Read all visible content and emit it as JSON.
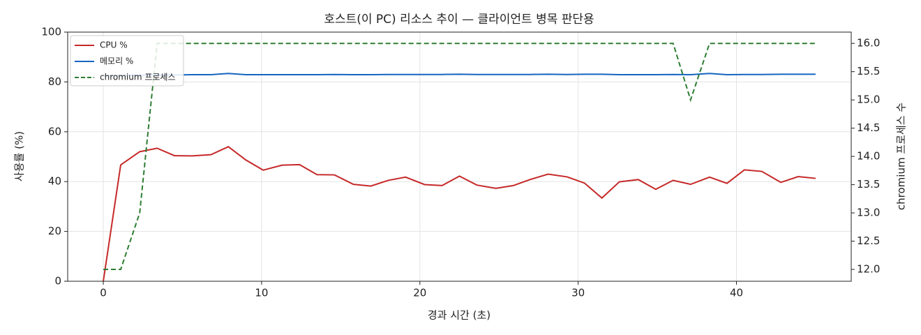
{
  "chart_data": {
    "type": "line",
    "title": "호스트(이 PC) 리소스 추이 — 클라이언트 병목 판단용",
    "x_label": "경과 시간 (초)",
    "y_label": "사용률 (%)",
    "y2_label": "chromium 프로세스 수",
    "x": [
      0,
      1.1,
      2.3,
      3.4,
      4.5,
      5.6,
      6.8,
      7.9,
      9.0,
      10.1,
      11.3,
      12.4,
      13.5,
      14.6,
      15.8,
      16.9,
      18.0,
      19.1,
      20.3,
      21.4,
      22.5,
      23.6,
      24.8,
      25.9,
      27.0,
      28.1,
      29.3,
      30.4,
      31.5,
      32.6,
      33.8,
      34.9,
      36.0,
      37.1,
      38.3,
      39.4,
      40.5,
      41.6,
      42.8,
      43.9,
      45.0
    ],
    "series": [
      {
        "name": "CPU %",
        "color": "#c62828",
        "linestyle": "solid",
        "axis": "y",
        "values": [
          0,
          46.7,
          52,
          53.4,
          50.4,
          50.3,
          50.8,
          54,
          48.7,
          44.6,
          46.6,
          46.8,
          42.8,
          42.7,
          38.9,
          38.2,
          40.5,
          41.8,
          38.8,
          38.4,
          42.2,
          38.6,
          37.3,
          38.4,
          40.9,
          43,
          41.9,
          39.4,
          33.4,
          39.9,
          40.8,
          36.9,
          40.5,
          38.9,
          41.8,
          39.3,
          44.7,
          44.1,
          39.7,
          42,
          41.3
        ]
      },
      {
        "name": "메모리 %",
        "color": "#1565c0",
        "linestyle": "solid",
        "axis": "y",
        "values": [
          82.5,
          82.6,
          82.7,
          82.8,
          82.8,
          82.9,
          82.9,
          83.4,
          82.9,
          82.9,
          82.9,
          82.9,
          82.9,
          83.0,
          82.9,
          82.9,
          83.0,
          83.0,
          83.0,
          83.0,
          83.1,
          83.0,
          83.0,
          83.0,
          83.0,
          83.1,
          83.0,
          83.1,
          83.1,
          82.9,
          82.9,
          82.9,
          83.0,
          82.9,
          83.4,
          82.9,
          83.0,
          83.0,
          83.1,
          83.1,
          83.1
        ]
      },
      {
        "name": "chromium 프로세스",
        "color": "#2e7d32",
        "linestyle": "dashed",
        "axis": "y2",
        "values": [
          12,
          12,
          13,
          16,
          16,
          16,
          16,
          16,
          16,
          16,
          16,
          16,
          16,
          16,
          16,
          16,
          16,
          16,
          16,
          16,
          16,
          16,
          16,
          16,
          16,
          16,
          16,
          16,
          16,
          16,
          16,
          16,
          16,
          15,
          16,
          16,
          16,
          16,
          16,
          16,
          16
        ]
      }
    ],
    "xlim": [
      -2.25,
      47.25
    ],
    "xticks": [
      0,
      10,
      20,
      30,
      40
    ],
    "ylim": [
      0,
      100
    ],
    "yticks": [
      0,
      20,
      40,
      60,
      80,
      100
    ],
    "y2lim": [
      11.79,
      16.2
    ],
    "y2ticks": [
      {
        "value": 12,
        "label": "12.0"
      },
      12.5,
      {
        "value": 13,
        "label": "13.0"
      },
      13.5,
      {
        "value": 14,
        "label": "14.0"
      },
      14.5,
      {
        "value": 15,
        "label": "15.0"
      },
      15.5,
      {
        "value": 16,
        "label": "16.0"
      }
    ],
    "grid": true,
    "legend": "upper-left"
  }
}
